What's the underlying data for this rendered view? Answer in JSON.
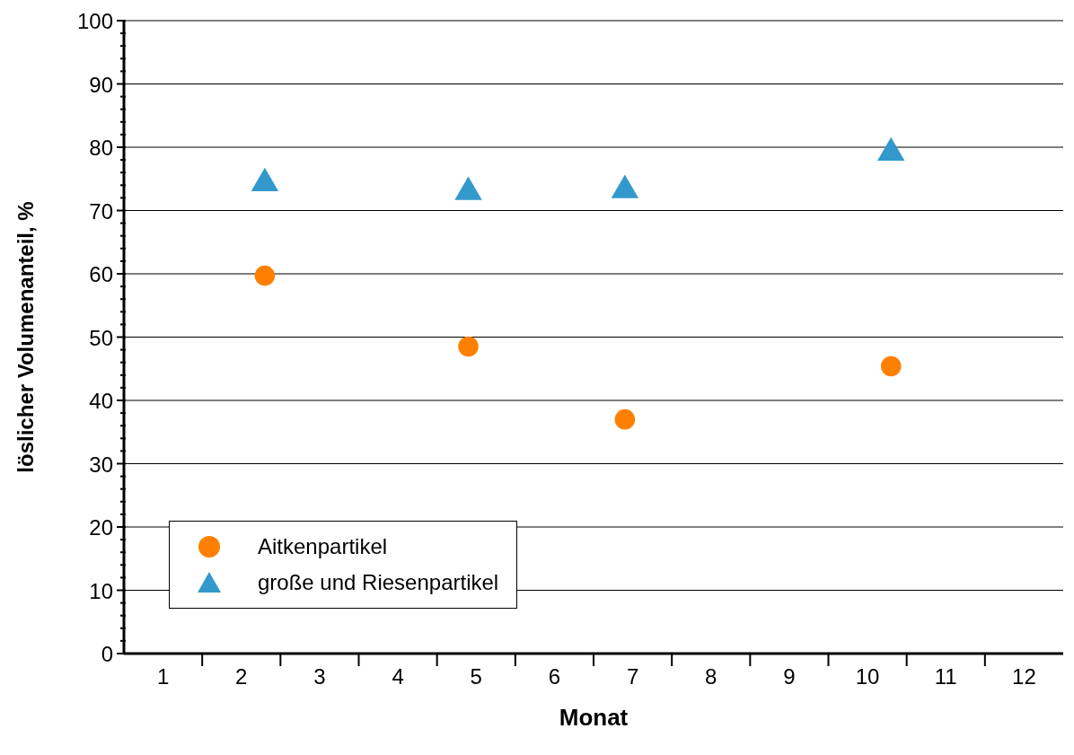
{
  "chart_data": {
    "type": "scatter",
    "xlabel": "Monat",
    "ylabel": "löslicher Volumenanteil, %",
    "xlim": [
      0.5,
      12.5
    ],
    "xticks": [
      1,
      {
        "value": 1.5,
        "label": null
      },
      2,
      {
        "value": 2.5,
        "label": null
      },
      3,
      {
        "value": 3.5,
        "label": null
      },
      4,
      {
        "value": 4.5,
        "label": null
      },
      5,
      {
        "value": 5.5,
        "label": null
      },
      6,
      {
        "value": 6.5,
        "label": null
      },
      7,
      {
        "value": 7.5,
        "label": null
      },
      8,
      {
        "value": 8.5,
        "label": null
      },
      9,
      {
        "value": 9.5,
        "label": null
      },
      10,
      {
        "value": 10.5,
        "label": null
      },
      11,
      {
        "value": 11.5,
        "label": null
      },
      12
    ],
    "ylim": [
      0,
      100
    ],
    "yticks": [
      0,
      {
        "value": 2,
        "label": null
      },
      {
        "value": 4,
        "label": null
      },
      {
        "value": 6,
        "label": null
      },
      {
        "value": 8,
        "label": null
      },
      10,
      {
        "value": 12,
        "label": null
      },
      {
        "value": 14,
        "label": null
      },
      {
        "value": 16,
        "label": null
      },
      {
        "value": 18,
        "label": null
      },
      20,
      {
        "value": 22,
        "label": null
      },
      {
        "value": 24,
        "label": null
      },
      {
        "value": 26,
        "label": null
      },
      {
        "value": 28,
        "label": null
      },
      30,
      {
        "value": 32,
        "label": null
      },
      {
        "value": 34,
        "label": null
      },
      {
        "value": 36,
        "label": null
      },
      {
        "value": 38,
        "label": null
      },
      40,
      {
        "value": 42,
        "label": null
      },
      {
        "value": 44,
        "label": null
      },
      {
        "value": 46,
        "label": null
      },
      {
        "value": 48,
        "label": null
      },
      50,
      {
        "value": 52,
        "label": null
      },
      {
        "value": 54,
        "label": null
      },
      {
        "value": 56,
        "label": null
      },
      {
        "value": 58,
        "label": null
      },
      60,
      {
        "value": 62,
        "label": null
      },
      {
        "value": 64,
        "label": null
      },
      {
        "value": 66,
        "label": null
      },
      {
        "value": 68,
        "label": null
      },
      70,
      {
        "value": 72,
        "label": null
      },
      {
        "value": 74,
        "label": null
      },
      {
        "value": 76,
        "label": null
      },
      {
        "value": 78,
        "label": null
      },
      80,
      {
        "value": 82,
        "label": null
      },
      {
        "value": 84,
        "label": null
      },
      {
        "value": 86,
        "label": null
      },
      {
        "value": 88,
        "label": null
      },
      90,
      {
        "value": 92,
        "label": null
      },
      {
        "value": 94,
        "label": null
      },
      {
        "value": 96,
        "label": null
      },
      {
        "value": 98,
        "label": null
      },
      100
    ],
    "grid": "y",
    "legend": "bottom left",
    "series": [
      {
        "name": "Aitkenpartikel",
        "color": "#ff8000",
        "marker": "circle",
        "x": [
          2.3,
          4.9,
          6.9,
          10.3
        ],
        "values": [
          59.7,
          48.5,
          37.0,
          45.4
        ]
      },
      {
        "name": "große und Riesenpartikel",
        "color": "#3399cc",
        "marker": "triangle",
        "x": [
          2.3,
          4.9,
          6.9,
          10.3
        ],
        "values": [
          74.3,
          72.9,
          73.2,
          79.1
        ]
      }
    ]
  }
}
